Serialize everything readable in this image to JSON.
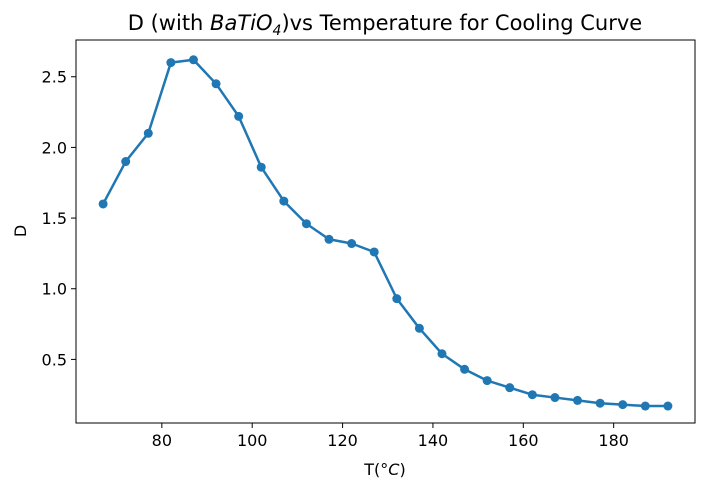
{
  "chart_data": {
    "type": "line",
    "title_parts": {
      "prefix": "D (with ",
      "formula": "BaTiO",
      "subscript": "4",
      "suffix": ")vs Temperature for Cooling Curve"
    },
    "xlabel_parts": {
      "prefix": "T(°",
      "italic": "C",
      "suffix": ")"
    },
    "ylabel": "D",
    "xlim": [
      61,
      198
    ],
    "ylim": [
      0.05,
      2.76
    ],
    "xticks": [
      80,
      100,
      120,
      140,
      160,
      180
    ],
    "yticks": [
      0.5,
      1.0,
      1.5,
      2.0,
      2.5
    ],
    "xtick_labels": [
      "80",
      "100",
      "120",
      "140",
      "160",
      "180"
    ],
    "ytick_labels": [
      "0.5",
      "1.0",
      "1.5",
      "2.0",
      "2.5"
    ],
    "grid": false,
    "series": [
      {
        "color": "#1f77b4",
        "marker": "circle",
        "x": [
          67,
          72,
          77,
          82,
          87,
          92,
          97,
          102,
          107,
          112,
          117,
          122,
          127,
          132,
          137,
          142,
          147,
          152,
          157,
          162,
          167,
          172,
          177,
          182,
          187,
          192
        ],
        "y": [
          1.6,
          1.9,
          2.1,
          2.6,
          2.62,
          2.45,
          2.22,
          1.86,
          1.62,
          1.46,
          1.35,
          1.32,
          1.26,
          0.93,
          0.72,
          0.54,
          0.43,
          0.35,
          0.3,
          0.25,
          0.23,
          0.21,
          0.19,
          0.18,
          0.17,
          0.17
        ]
      }
    ]
  }
}
